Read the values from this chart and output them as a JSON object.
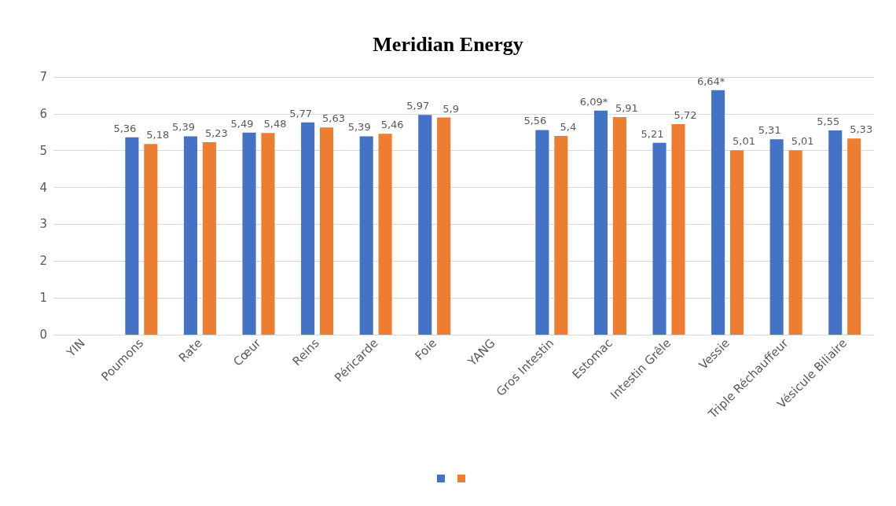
{
  "chart_data": {
    "type": "bar",
    "title": "Meridian Energy",
    "categories": [
      "YIN",
      "Poumons",
      "Rate",
      "Cœur",
      "Reins",
      "Péricarde",
      "Foie",
      "YANG",
      "Gros Intestin",
      "Estomac",
      "Intestin Grêle",
      "Vessie",
      "Triple Réchauffeur",
      "Vésicule Biliaire"
    ],
    "series": [
      {
        "color": "#4472c4",
        "values": [
          null,
          5.36,
          5.39,
          5.49,
          5.77,
          5.39,
          5.97,
          null,
          5.56,
          6.09,
          5.21,
          6.64,
          5.31,
          5.55
        ],
        "value_labels": [
          null,
          "5,36",
          "5,39",
          "5,49",
          "5,77",
          "5,39",
          "5,97",
          null,
          "5,56",
          "6,09*",
          "5,21",
          "6,64*",
          "5,31",
          "5,55"
        ]
      },
      {
        "color": "#ed7d31",
        "values": [
          null,
          5.18,
          5.23,
          5.48,
          5.63,
          5.46,
          5.9,
          null,
          5.4,
          5.91,
          5.72,
          5.01,
          5.01,
          5.33
        ],
        "value_labels": [
          null,
          "5,18",
          "5,23",
          "5,48",
          "5,63",
          "5,46",
          "5,9",
          null,
          "5,4",
          "5,91",
          "5,72",
          "5,01",
          "5,01",
          "5,33"
        ]
      }
    ],
    "ylim": [
      0,
      7
    ],
    "yticks": [
      0,
      1,
      2,
      3,
      4,
      5,
      6,
      7
    ],
    "grid": "y"
  }
}
